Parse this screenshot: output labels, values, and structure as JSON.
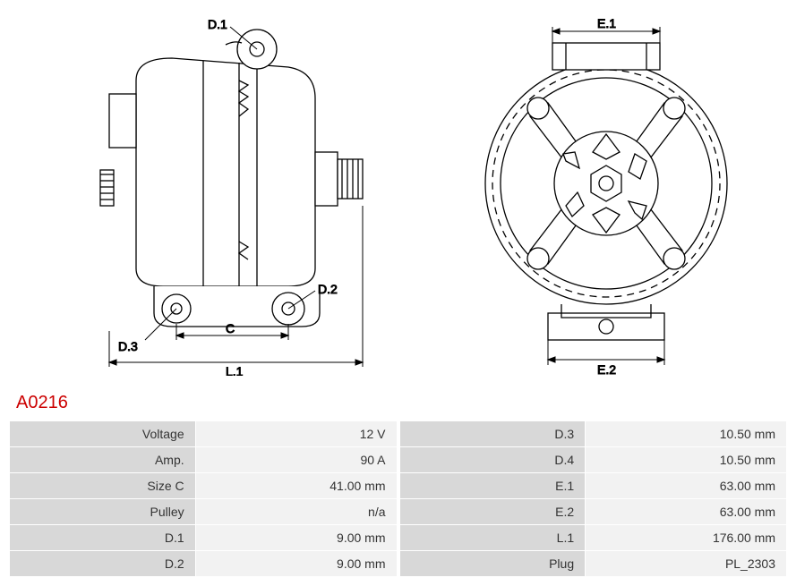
{
  "part_number": "A0216",
  "diagrams": {
    "side_view": {
      "labels": {
        "d1": "D.1",
        "d2": "D.2",
        "d3": "D.3",
        "c": "C",
        "l1": "L.1"
      },
      "stroke_color": "#000000",
      "stroke_width": 1.3,
      "fill": "#ffffff"
    },
    "front_view": {
      "labels": {
        "e1": "E.1",
        "e2": "E.2"
      },
      "stroke_color": "#000000",
      "stroke_width": 1.3,
      "fill": "#ffffff"
    }
  },
  "specs_left": [
    {
      "label": "Voltage",
      "value": "12 V"
    },
    {
      "label": "Amp.",
      "value": "90 A"
    },
    {
      "label": "Size C",
      "value": "41.00 mm"
    },
    {
      "label": "Pulley",
      "value": "n/a"
    },
    {
      "label": "D.1",
      "value": "9.00 mm"
    },
    {
      "label": "D.2",
      "value": "9.00 mm"
    }
  ],
  "specs_right": [
    {
      "label": "D.3",
      "value": "10.50 mm"
    },
    {
      "label": "D.4",
      "value": "10.50 mm"
    },
    {
      "label": "E.1",
      "value": "63.00 mm"
    },
    {
      "label": "E.2",
      "value": "63.00 mm"
    },
    {
      "label": "L.1",
      "value": "176.00 mm"
    },
    {
      "label": "Plug",
      "value": "PL_2303"
    }
  ],
  "table_style": {
    "label_bg": "#d8d8d8",
    "value_bg": "#f2f2f2",
    "font_size": 14,
    "text_color": "#333333"
  }
}
